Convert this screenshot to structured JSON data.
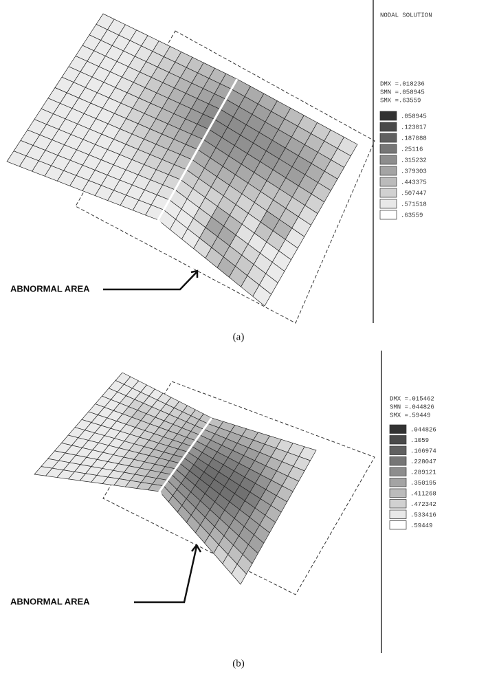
{
  "panels": [
    {
      "label": "(a)",
      "title": "NODAL SOLUTION",
      "stats": [
        "DMX =.018236",
        "SMN =.058945",
        "SMX =.63559"
      ],
      "levels": [
        ".058945",
        ".123017",
        ".187088",
        ".25116",
        ".315232",
        ".379303",
        ".443375",
        ".507447",
        ".571518",
        ".63559"
      ],
      "annotation": "ABNORMAL AREA"
    },
    {
      "label": "(b)",
      "stats": [
        "DMX =.015462",
        "SMN =.044826",
        "SMX =.59449"
      ],
      "levels": [
        ".044826",
        ".1059",
        ".166974",
        ".228047",
        ".289121",
        ".350195",
        ".411268",
        ".472342",
        ".533416",
        ".59449"
      ],
      "annotation": "ABNORMAL AREA"
    }
  ]
}
